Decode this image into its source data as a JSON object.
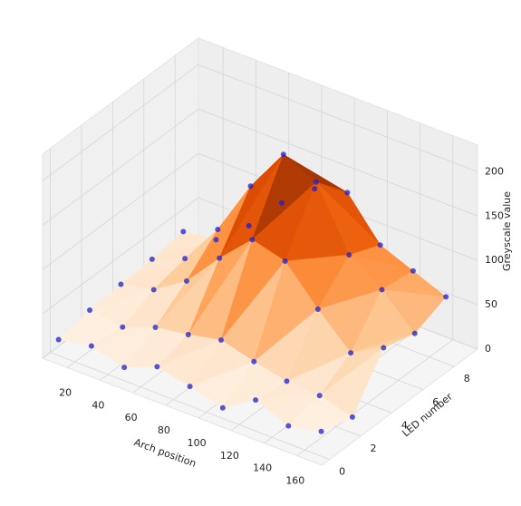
{
  "chart_data": {
    "type": "surface3d",
    "x_label": "Arch position",
    "y_label": "LED number",
    "z_label": "Greyscale value",
    "x": [
      10,
      30,
      50,
      70,
      90,
      110,
      130,
      150,
      170
    ],
    "y": [
      0,
      2,
      4,
      6,
      8
    ],
    "values": [
      [
        18,
        25,
        15,
        30,
        22,
        12,
        35,
        20,
        28
      ],
      [
        25,
        20,
        34,
        40,
        48,
        38,
        30,
        28,
        18
      ],
      [
        28,
        36,
        60,
        100,
        135,
        125,
        85,
        50,
        70
      ],
      [
        30,
        45,
        92,
        155,
        205,
        188,
        120,
        95,
        60
      ],
      [
        35,
        40,
        70,
        110,
        140,
        150,
        105,
        90,
        75
      ]
    ],
    "point_color": "#1f1fcc",
    "colormap": [
      "#fff5eb",
      "#fee6ce",
      "#fdd0a2",
      "#fdae6b",
      "#fd8d3c",
      "#f16913",
      "#d94801",
      "#a63603",
      "#7f2704"
    ],
    "xlim": [
      5,
      175
    ],
    "xticks": [
      20,
      40,
      60,
      80,
      100,
      120,
      140,
      160
    ],
    "ylim": [
      -0.5,
      9.5
    ],
    "yticks": [
      0,
      2,
      4,
      6,
      8
    ],
    "zlim": [
      0,
      230
    ],
    "zticks": [
      0,
      50,
      100,
      150,
      200
    ],
    "grid": true
  }
}
